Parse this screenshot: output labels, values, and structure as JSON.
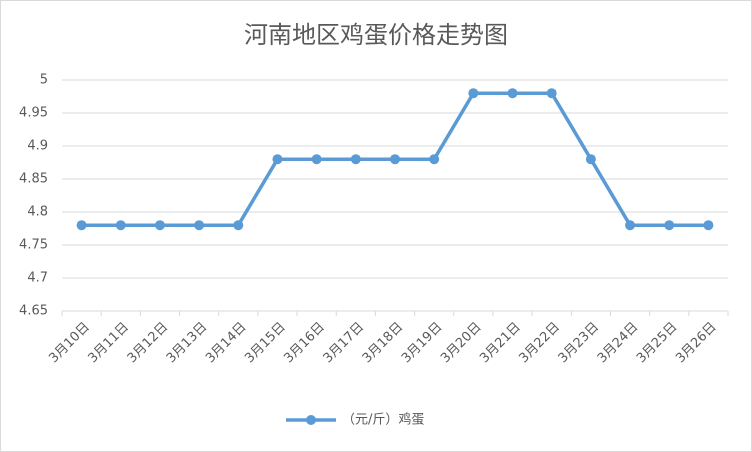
{
  "chart_data": {
    "type": "line",
    "title": "河南地区鸡蛋价格走势图",
    "categories": [
      "3月10日",
      "3月11日",
      "3月12日",
      "3月13日",
      "3月14日",
      "3月15日",
      "3月16日",
      "3月17日",
      "3月18日",
      "3月19日",
      "3月20日",
      "3月21日",
      "3月22日",
      "3月23日",
      "3月24日",
      "3月25日",
      "3月26日"
    ],
    "series": [
      {
        "name": "（元/斤）鸡蛋",
        "color": "#5b9bd5",
        "values": [
          4.78,
          4.78,
          4.78,
          4.78,
          4.78,
          4.88,
          4.88,
          4.88,
          4.88,
          4.88,
          4.98,
          4.98,
          4.98,
          4.88,
          4.78,
          4.78,
          4.78
        ]
      }
    ],
    "ylim": [
      4.65,
      5
    ],
    "yticks": [
      4.65,
      4.7,
      4.75,
      4.8,
      4.85,
      4.9,
      4.95,
      5
    ],
    "grid": true,
    "legend": "bottom"
  }
}
